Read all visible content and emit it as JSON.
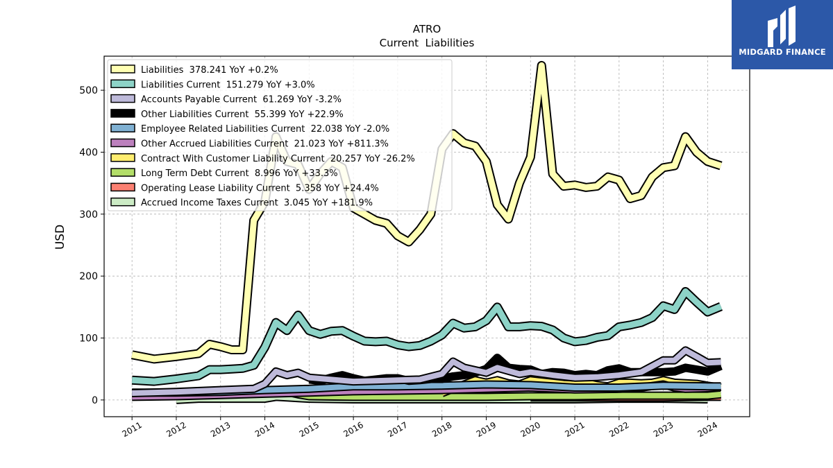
{
  "brand": {
    "name": "MIDGARD FINANCE",
    "bg": "#2c58a8"
  },
  "chart_data": {
    "type": "line",
    "title": "ATRO",
    "subtitle": "Current  Liabilities",
    "ylabel": "USD",
    "xlabel": "",
    "ylim": [
      -27,
      555
    ],
    "xlim": [
      2010.37,
      2024.95
    ],
    "grid": true,
    "legend": "top-left",
    "yticks": [
      0,
      100,
      200,
      300,
      400,
      500
    ],
    "xticks": [
      "2011",
      "2012",
      "2013",
      "2014",
      "2015",
      "2016",
      "2017",
      "2018",
      "2019",
      "2020",
      "2021",
      "2022",
      "2023",
      "2024"
    ],
    "series": [
      {
        "name": "Liabilities  378.241 YoY +0.2%",
        "color": "#ffffb3",
        "width": 10,
        "x": [
          2011.0,
          2011.5,
          2012.0,
          2012.5,
          2012.75,
          2013.0,
          2013.25,
          2013.5,
          2013.75,
          2014.0,
          2014.25,
          2014.5,
          2014.75,
          2015.0,
          2015.25,
          2015.5,
          2015.75,
          2016.0,
          2016.25,
          2016.5,
          2016.75,
          2017.0,
          2017.25,
          2017.5,
          2017.75,
          2018.0,
          2018.25,
          2018.5,
          2018.75,
          2019.0,
          2019.25,
          2019.5,
          2019.75,
          2020.0,
          2020.25,
          2020.5,
          2020.75,
          2021.0,
          2021.25,
          2021.5,
          2021.75,
          2022.0,
          2022.25,
          2022.5,
          2022.75,
          2023.0,
          2023.25,
          2023.5,
          2023.75,
          2024.0,
          2024.3
        ],
        "y": [
          73,
          66,
          70,
          75,
          90,
          86,
          81,
          81,
          290,
          320,
          425,
          385,
          380,
          340,
          365,
          385,
          375,
          310,
          300,
          290,
          285,
          265,
          255,
          275,
          300,
          405,
          430,
          415,
          410,
          385,
          315,
          292,
          350,
          392,
          540,
          365,
          345,
          347,
          343,
          345,
          360,
          355,
          325,
          330,
          360,
          375,
          378,
          425,
          400,
          385,
          378
        ]
      },
      {
        "name": "Liabilities Current  151.279 YoY +3.0%",
        "color": "#8dd3c7",
        "width": 10,
        "x": [
          2011.0,
          2011.5,
          2012.0,
          2012.5,
          2012.75,
          2013.0,
          2013.25,
          2013.5,
          2013.75,
          2014.0,
          2014.25,
          2014.5,
          2014.75,
          2015.0,
          2015.25,
          2015.5,
          2015.75,
          2016.0,
          2016.25,
          2016.5,
          2016.75,
          2017.0,
          2017.25,
          2017.5,
          2017.75,
          2018.0,
          2018.25,
          2018.5,
          2018.75,
          2019.0,
          2019.25,
          2019.5,
          2019.75,
          2020.0,
          2020.25,
          2020.5,
          2020.75,
          2021.0,
          2021.25,
          2021.5,
          2021.75,
          2022.0,
          2022.25,
          2022.5,
          2022.75,
          2023.0,
          2023.25,
          2023.5,
          2023.75,
          2024.0,
          2024.3
        ],
        "y": [
          32,
          30,
          34,
          39,
          49,
          49,
          50,
          51,
          56,
          85,
          125,
          112,
          137,
          112,
          106,
          111,
          112,
          103,
          95,
          94,
          95,
          89,
          86,
          88,
          95,
          105,
          124,
          116,
          118,
          128,
          150,
          118,
          118,
          120,
          119,
          113,
          100,
          94,
          96,
          101,
          104,
          118,
          121,
          125,
          133,
          152,
          146,
          175,
          158,
          142,
          151
        ]
      },
      {
        "name": "Accounts Payable Current  61.269 YoY -3.2%",
        "color": "#bebada",
        "width": 9,
        "x": [
          2011.0,
          2012.0,
          2013.0,
          2013.75,
          2014.0,
          2014.25,
          2014.5,
          2014.75,
          2015.0,
          2015.5,
          2016.0,
          2016.5,
          2017.0,
          2017.5,
          2018.0,
          2018.25,
          2018.5,
          2019.0,
          2019.25,
          2019.5,
          2019.75,
          2020.0,
          2020.5,
          2021.0,
          2021.5,
          2022.0,
          2022.5,
          2023.0,
          2023.25,
          2023.5,
          2023.75,
          2024.0,
          2024.3
        ],
        "y": [
          11,
          13,
          16,
          18,
          26,
          46,
          40,
          44,
          36,
          33,
          30,
          31,
          32,
          33,
          42,
          62,
          52,
          44,
          52,
          47,
          42,
          45,
          40,
          36,
          37,
          40,
          45,
          64,
          64,
          80,
          70,
          60,
          61
        ]
      },
      {
        "name": "Other Liabilities Current  55.399 YoY +22.9%",
        "color": "#000000",
        "width": 9,
        "x": [
          2015.0,
          2015.25,
          2015.5,
          2015.75,
          2016.0,
          2016.25,
          2016.5,
          2016.75,
          2017.0,
          2017.25,
          2017.5,
          2017.75,
          2018.0,
          2018.25,
          2018.5,
          2018.75,
          2019.0,
          2019.25,
          2019.5,
          2019.75,
          2020.0,
          2020.25,
          2020.5,
          2020.75,
          2021.0,
          2021.25,
          2021.5,
          2021.75,
          2022.0,
          2022.25,
          2022.5,
          2022.75,
          2023.0,
          2023.25,
          2023.5,
          2023.75,
          2024.0,
          2024.3
        ],
        "y": [
          33,
          31,
          36,
          40,
          35,
          31,
          33,
          35,
          35,
          31,
          32,
          34,
          34,
          38,
          40,
          44,
          50,
          68,
          52,
          50,
          49,
          42,
          45,
          44,
          40,
          42,
          40,
          48,
          51,
          45,
          45,
          45,
          45,
          46,
          52,
          49,
          46,
          55
        ]
      },
      {
        "name": "Employee Related Liabilities Current  22.038 YoY -2.0%",
        "color": "#80b1d3",
        "width": 9,
        "x": [
          2011.0,
          2012.0,
          2013.0,
          2014.0,
          2015.0,
          2016.0,
          2017.0,
          2018.0,
          2019.0,
          2020.0,
          2021.0,
          2022.0,
          2023.0,
          2024.0,
          2024.3
        ],
        "y": [
          12,
          12,
          13,
          16,
          18,
          22,
          22,
          23,
          25,
          24,
          20,
          20,
          23,
          22,
          22
        ]
      },
      {
        "name": "Other Accrued Liabilities Current  21.023 YoY +811.3%",
        "color": "#bc80bd",
        "width": 9,
        "x": [
          2011.0,
          2012.0,
          2013.0,
          2014.0,
          2015.0,
          2016.0,
          2017.0,
          2018.0,
          2019.0,
          2020.0,
          2021.0,
          2022.0,
          2022.5,
          2023.0,
          2023.25,
          2023.5,
          2024.0,
          2024.3
        ],
        "y": [
          5,
          6,
          8,
          10,
          12,
          14,
          15,
          16,
          18,
          20,
          17,
          18,
          20,
          25,
          20,
          18,
          19,
          21
        ]
      },
      {
        "name": "Contract With Customer Liability Current  20.257 YoY -26.2%",
        "color": "#ffed6f",
        "width": 9,
        "x": [
          2018.0,
          2018.25,
          2018.5,
          2018.75,
          2019.0,
          2019.25,
          2019.5,
          2019.75,
          2020.0,
          2020.25,
          2020.5,
          2020.75,
          2021.0,
          2021.25,
          2021.5,
          2021.75,
          2022.0,
          2022.25,
          2022.5,
          2022.75,
          2023.0,
          2023.25,
          2023.5,
          2023.75,
          2024.0,
          2024.3
        ],
        "y": [
          11,
          18,
          25,
          32,
          28,
          32,
          27,
          25,
          32,
          30,
          28,
          26,
          25,
          28,
          24,
          22,
          28,
          28,
          27,
          28,
          32,
          28,
          27,
          26,
          23,
          20
        ]
      },
      {
        "name": "Long Term Debt Current  8.996 YoY +33.3%",
        "color": "#b3de69",
        "width": 9,
        "x": [
          2011.0,
          2012.0,
          2012.75,
          2013.0,
          2013.25,
          2013.5,
          2013.75,
          2014.0,
          2014.25,
          2014.5,
          2014.75,
          2015.0,
          2016.0,
          2017.0,
          2018.0,
          2019.0,
          2020.0,
          2021.0,
          2022.0,
          2023.0,
          2024.0,
          2024.3
        ],
        "y": [
          6,
          7,
          8,
          10,
          12,
          11,
          11,
          13,
          14,
          13,
          9,
          6,
          5,
          5,
          5,
          5,
          6,
          6,
          7,
          7,
          7,
          9
        ]
      },
      {
        "name": "Operating Lease Liability Current  5.358 YoY +24.4%",
        "color": "#fb8072",
        "width": 9,
        "x": [
          2020.0,
          2021.0,
          2022.0,
          2023.0,
          2024.0,
          2024.3
        ],
        "y": [
          4,
          4,
          4,
          4,
          5,
          5
        ]
      },
      {
        "name": "Accrued Income Taxes Current  3.045 YoY +181.9%",
        "color": "#ccebc5",
        "width": 9,
        "x": [
          2012.0,
          2012.5,
          2013.0,
          2013.5,
          2014.0,
          2014.25,
          2014.5,
          2014.75,
          2015.0,
          2016.0,
          2017.0,
          2018.0,
          2019.0,
          2020.0,
          2021.0,
          2022.0,
          2023.0,
          2024.0
        ],
        "y": [
          0,
          2,
          2,
          2,
          2,
          5,
          4,
          3,
          2,
          1,
          1,
          1,
          1,
          1,
          1,
          2,
          2,
          1
        ]
      }
    ]
  }
}
